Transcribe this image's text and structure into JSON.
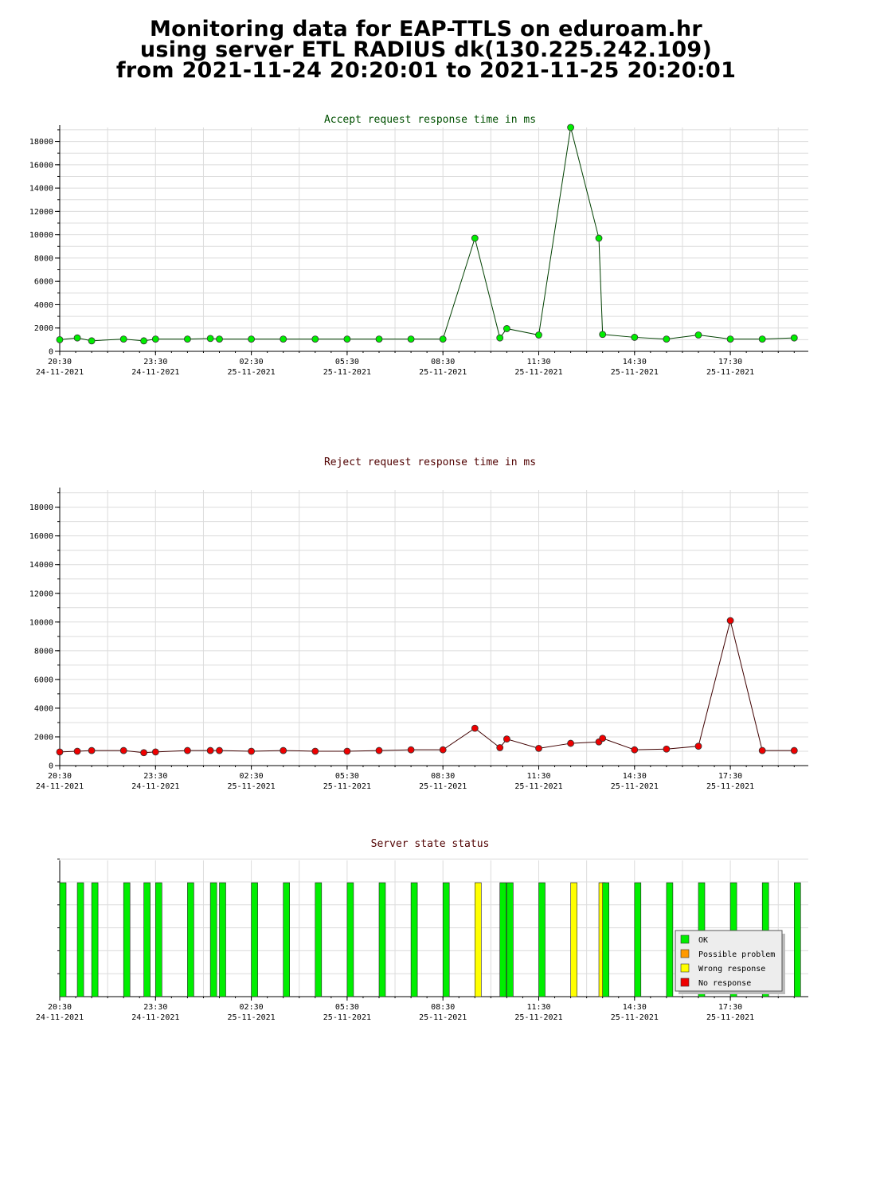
{
  "page": {
    "title_lines": [
      "Monitoring data for EAP-TTLS on eduroam.hr",
      "using server ETL RADIUS dk(130.225.242.109)",
      "from 2021-11-24 20:20:01 to 2021-11-25 20:20:01"
    ]
  },
  "colors": {
    "accept_title": "#005000",
    "reject_title": "#500000",
    "status_title": "#500000",
    "accept_line": "#004000",
    "accept_point": "#00ee00",
    "reject_line": "#400000",
    "reject_point": "#ee0000",
    "ok": "#00ee00",
    "possible_problem": "#ff9900",
    "wrong_response": "#ffff00",
    "no_response": "#ee0000",
    "grid": "#dcdcdc"
  },
  "chart_data": [
    {
      "type": "line",
      "title": "Accept request response time in ms",
      "xlabel": "",
      "ylabel": "",
      "x_ticks": [
        {
          "time": "20:30",
          "date": "24-11-2021"
        },
        {
          "time": "23:30",
          "date": "24-11-2021"
        },
        {
          "time": "02:30",
          "date": "25-11-2021"
        },
        {
          "time": "05:30",
          "date": "25-11-2021"
        },
        {
          "time": "08:30",
          "date": "25-11-2021"
        },
        {
          "time": "11:30",
          "date": "25-11-2021"
        },
        {
          "time": "14:30",
          "date": "25-11-2021"
        },
        {
          "time": "17:30",
          "date": "25-11-2021"
        }
      ],
      "xlim": [
        "2021-11-24 20:30",
        "2021-11-25 20:00"
      ],
      "y_ticks": [
        0,
        2000,
        4000,
        6000,
        8000,
        10000,
        12000,
        14000,
        16000,
        18000
      ],
      "ylim": [
        0,
        19200
      ],
      "grid": true,
      "series": [
        {
          "x": [
            "2021-11-24 20:30",
            "2021-11-24 21:03",
            "2021-11-24 21:30",
            "2021-11-24 22:30",
            "2021-11-24 23:08",
            "2021-11-24 23:30",
            "2021-11-25 00:30",
            "2021-11-25 01:13",
            "2021-11-25 01:30",
            "2021-11-25 02:30",
            "2021-11-25 03:30",
            "2021-11-25 04:30",
            "2021-11-25 05:30",
            "2021-11-25 06:30",
            "2021-11-25 07:30",
            "2021-11-25 08:30",
            "2021-11-25 09:30",
            "2021-11-25 10:17",
            "2021-11-25 10:30",
            "2021-11-25 11:30",
            "2021-11-25 12:30",
            "2021-11-25 13:23",
            "2021-11-25 13:30",
            "2021-11-25 14:30",
            "2021-11-25 15:30",
            "2021-11-25 16:30",
            "2021-11-25 17:30",
            "2021-11-25 18:30",
            "2021-11-25 19:30"
          ],
          "y": [
            1000,
            1150,
            900,
            1050,
            900,
            1050,
            1050,
            1100,
            1050,
            1050,
            1050,
            1050,
            1050,
            1050,
            1050,
            1050,
            9700,
            1150,
            1950,
            1400,
            19200,
            9700,
            1450,
            1200,
            1050,
            1400,
            1050,
            1050,
            1150
          ]
        }
      ]
    },
    {
      "type": "line",
      "title": "Reject request response time in ms",
      "xlabel": "",
      "ylabel": "",
      "x_ticks": [
        {
          "time": "20:30",
          "date": "24-11-2021"
        },
        {
          "time": "23:30",
          "date": "24-11-2021"
        },
        {
          "time": "02:30",
          "date": "25-11-2021"
        },
        {
          "time": "05:30",
          "date": "25-11-2021"
        },
        {
          "time": "08:30",
          "date": "25-11-2021"
        },
        {
          "time": "11:30",
          "date": "25-11-2021"
        },
        {
          "time": "14:30",
          "date": "25-11-2021"
        },
        {
          "time": "17:30",
          "date": "25-11-2021"
        }
      ],
      "xlim": [
        "2021-11-24 20:30",
        "2021-11-25 20:00"
      ],
      "y_ticks": [
        0,
        2000,
        4000,
        6000,
        8000,
        10000,
        12000,
        14000,
        16000,
        18000
      ],
      "ylim": [
        0,
        19200
      ],
      "grid": true,
      "series": [
        {
          "x": [
            "2021-11-24 20:30",
            "2021-11-24 21:03",
            "2021-11-24 21:30",
            "2021-11-24 22:30",
            "2021-11-24 23:08",
            "2021-11-24 23:30",
            "2021-11-25 00:30",
            "2021-11-25 01:13",
            "2021-11-25 01:30",
            "2021-11-25 02:30",
            "2021-11-25 03:30",
            "2021-11-25 04:30",
            "2021-11-25 05:30",
            "2021-11-25 06:30",
            "2021-11-25 07:30",
            "2021-11-25 08:30",
            "2021-11-25 09:30",
            "2021-11-25 10:17",
            "2021-11-25 10:30",
            "2021-11-25 11:30",
            "2021-11-25 12:30",
            "2021-11-25 13:23",
            "2021-11-25 13:30",
            "2021-11-25 14:30",
            "2021-11-25 15:30",
            "2021-11-25 16:30",
            "2021-11-25 17:30",
            "2021-11-25 18:30",
            "2021-11-25 19:30"
          ],
          "y": [
            950,
            1000,
            1050,
            1050,
            900,
            950,
            1050,
            1050,
            1050,
            1000,
            1050,
            1000,
            1000,
            1050,
            1100,
            1100,
            2600,
            1250,
            1850,
            1200,
            1550,
            1650,
            1900,
            1100,
            1150,
            1350,
            10100,
            1050,
            1050
          ]
        }
      ]
    },
    {
      "type": "bar",
      "title": "Server state status",
      "xlabel": "",
      "ylabel": "",
      "x_ticks": [
        {
          "time": "20:30",
          "date": "24-11-2021"
        },
        {
          "time": "23:30",
          "date": "24-11-2021"
        },
        {
          "time": "02:30",
          "date": "25-11-2021"
        },
        {
          "time": "05:30",
          "date": "25-11-2021"
        },
        {
          "time": "08:30",
          "date": "25-11-2021"
        },
        {
          "time": "11:30",
          "date": "25-11-2021"
        },
        {
          "time": "14:30",
          "date": "25-11-2021"
        },
        {
          "time": "17:30",
          "date": "25-11-2021"
        }
      ],
      "xlim": [
        "2021-11-24 20:30",
        "2021-11-25 20:00"
      ],
      "grid": true,
      "legend": {
        "position": "bottom-right",
        "items": [
          {
            "label": "OK",
            "color": "#00ee00"
          },
          {
            "label": "Possible problem",
            "color": "#ff9900"
          },
          {
            "label": "Wrong response",
            "color": "#ffff00"
          },
          {
            "label": "No response",
            "color": "#ee0000"
          }
        ]
      },
      "events": [
        {
          "time": "2021-11-24 20:30",
          "status": "OK"
        },
        {
          "time": "2021-11-24 21:03",
          "status": "OK"
        },
        {
          "time": "2021-11-24 21:30",
          "status": "OK"
        },
        {
          "time": "2021-11-24 22:30",
          "status": "OK"
        },
        {
          "time": "2021-11-24 23:08",
          "status": "OK"
        },
        {
          "time": "2021-11-24 23:30",
          "status": "OK"
        },
        {
          "time": "2021-11-25 00:30",
          "status": "OK"
        },
        {
          "time": "2021-11-25 01:13",
          "status": "OK"
        },
        {
          "time": "2021-11-25 01:30",
          "status": "OK"
        },
        {
          "time": "2021-11-25 02:30",
          "status": "OK"
        },
        {
          "time": "2021-11-25 03:30",
          "status": "OK"
        },
        {
          "time": "2021-11-25 04:30",
          "status": "OK"
        },
        {
          "time": "2021-11-25 05:30",
          "status": "OK"
        },
        {
          "time": "2021-11-25 06:30",
          "status": "OK"
        },
        {
          "time": "2021-11-25 07:30",
          "status": "OK"
        },
        {
          "time": "2021-11-25 08:30",
          "status": "OK"
        },
        {
          "time": "2021-11-25 09:30",
          "status": "Wrong response"
        },
        {
          "time": "2021-11-25 10:17",
          "status": "OK"
        },
        {
          "time": "2021-11-25 10:30",
          "status": "OK"
        },
        {
          "time": "2021-11-25 11:30",
          "status": "OK"
        },
        {
          "time": "2021-11-25 12:30",
          "status": "Wrong response"
        },
        {
          "time": "2021-11-25 13:23",
          "status": "Wrong response"
        },
        {
          "time": "2021-11-25 13:30",
          "status": "OK"
        },
        {
          "time": "2021-11-25 14:30",
          "status": "OK"
        },
        {
          "time": "2021-11-25 15:30",
          "status": "OK"
        },
        {
          "time": "2021-11-25 16:30",
          "status": "OK"
        },
        {
          "time": "2021-11-25 17:30",
          "status": "OK"
        },
        {
          "time": "2021-11-25 18:30",
          "status": "OK"
        },
        {
          "time": "2021-11-25 19:30",
          "status": "OK"
        }
      ]
    }
  ]
}
